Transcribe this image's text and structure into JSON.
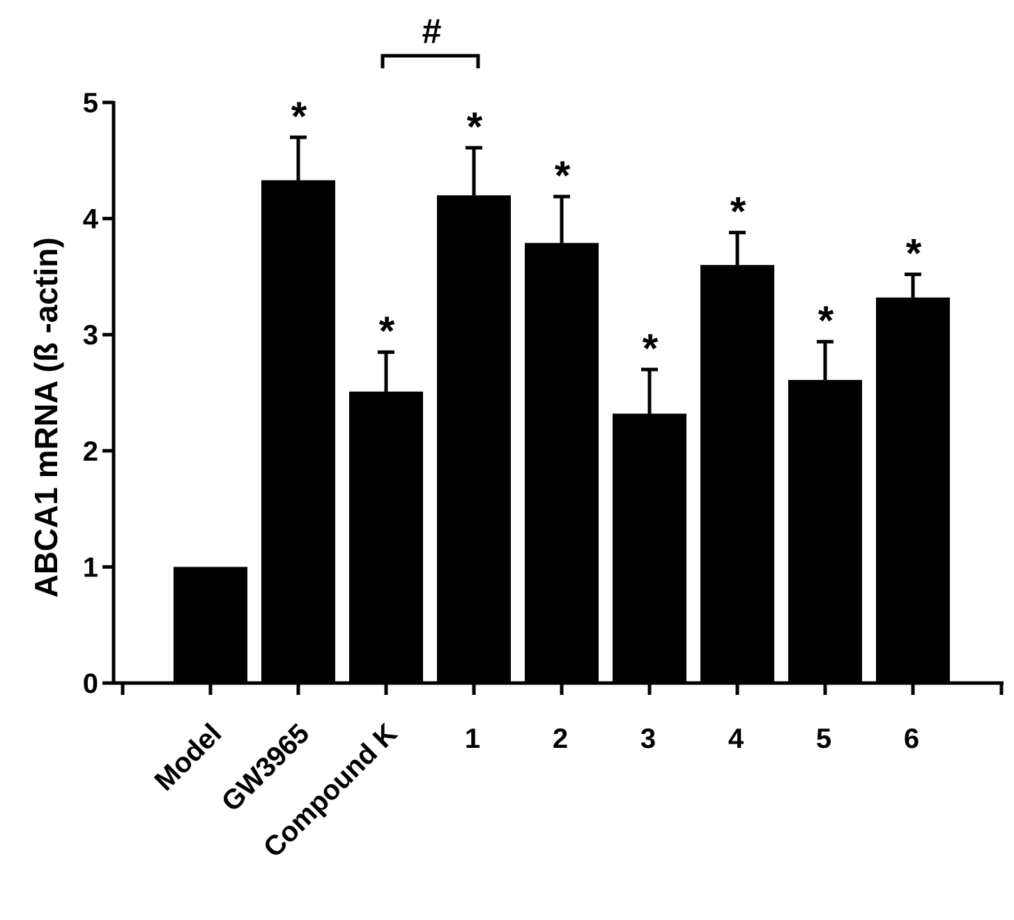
{
  "chart_data": {
    "type": "bar",
    "title": "",
    "xlabel": "",
    "ylabel": "ABCA1 mRNA (ß -actin)",
    "ylim": [
      0,
      5
    ],
    "yticks": [
      "0",
      "1",
      "2",
      "3",
      "4",
      "5"
    ],
    "categories": [
      "Model",
      "GW3965",
      "Compound K",
      "1",
      "2",
      "3",
      "4",
      "5",
      "6"
    ],
    "values": [
      1.0,
      4.33,
      2.51,
      4.2,
      3.79,
      2.32,
      3.6,
      2.61,
      3.32
    ],
    "errors": [
      0.0,
      0.37,
      0.34,
      0.41,
      0.4,
      0.38,
      0.28,
      0.33,
      0.2
    ],
    "significance": [
      "",
      "*",
      "*",
      "*",
      "*",
      "*",
      "*",
      "*",
      "*"
    ],
    "bracket": {
      "from": "Compound K",
      "to": "1",
      "label": "#"
    },
    "bar_color": "#000000",
    "grid": false,
    "legend": "none"
  }
}
